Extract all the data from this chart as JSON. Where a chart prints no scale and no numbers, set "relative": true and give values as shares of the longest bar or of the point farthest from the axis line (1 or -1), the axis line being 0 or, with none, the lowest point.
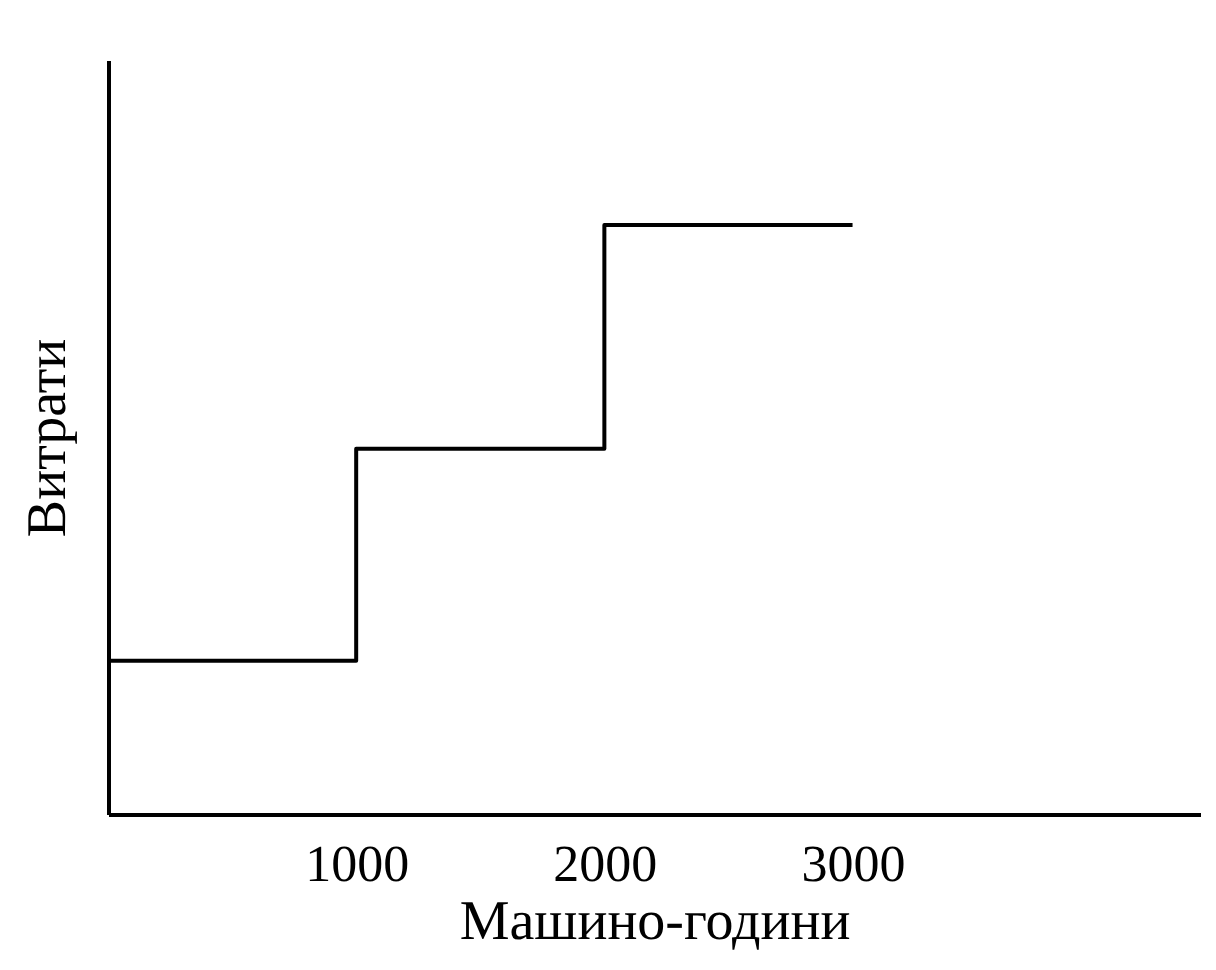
{
  "chart_data": {
    "type": "step",
    "xlabel": "Машино-години",
    "ylabel": "Витрати",
    "relative": true,
    "x": [
      0,
      1000,
      2000,
      3000
    ],
    "xlim": [
      0,
      4400
    ],
    "xticks": [
      1000,
      2000,
      3000
    ],
    "series": [
      {
        "color": "#000000",
        "values": [
          0.26,
          0.62,
          1,
          1
        ]
      }
    ],
    "grid": false,
    "marker": "none",
    "tick_labels": "x"
  }
}
